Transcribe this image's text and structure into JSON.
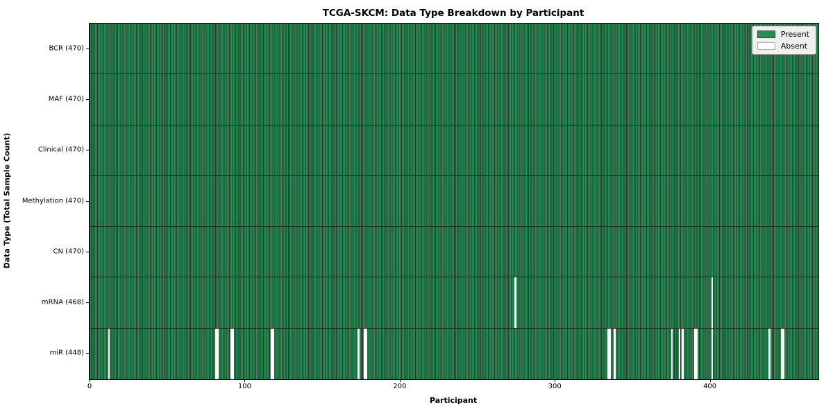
{
  "title": "TCGA-SKCM: Data Type Breakdown by Participant",
  "legend": {
    "present_label": "Present",
    "absent_label": "Absent"
  },
  "colors": {
    "present": "#2e8b57",
    "bar_edge": "#17402a",
    "row_divider": "#1a2e20",
    "absent": "#ffffff"
  },
  "chart_data": {
    "type": "heatmap",
    "title": "TCGA-SKCM: Data Type Breakdown by Participant",
    "xlabel": "Participant",
    "ylabel": "Data Type (Total Sample Count)",
    "xlim": [
      0,
      470
    ],
    "x_ticks": [
      0,
      100,
      200,
      300,
      400
    ],
    "total_participants": 470,
    "legend_entries": [
      "Present",
      "Absent"
    ],
    "legend_position": "upper right",
    "grid": false,
    "rows": [
      {
        "data_type": "BCR",
        "label": "BCR (470)",
        "present_count": 470,
        "absent_participants": []
      },
      {
        "data_type": "MAF",
        "label": "MAF (470)",
        "present_count": 470,
        "absent_participants": []
      },
      {
        "data_type": "Clinical",
        "label": "Clinical (470)",
        "present_count": 470,
        "absent_participants": []
      },
      {
        "data_type": "Methylation",
        "label": "Methylation (470)",
        "present_count": 470,
        "absent_participants": []
      },
      {
        "data_type": "CN",
        "label": "CN (470)",
        "present_count": 470,
        "absent_participants": []
      },
      {
        "data_type": "mRNA",
        "label": "mRNA (468)",
        "present_count": 468,
        "absent_participants": [
          274,
          401
        ]
      },
      {
        "data_type": "miR",
        "label": "miR (448)",
        "present_count": 448,
        "absent_participants": [
          12,
          81,
          82,
          91,
          92,
          117,
          118,
          173,
          177,
          178,
          334,
          335,
          338,
          375,
          380,
          382,
          390,
          391,
          401,
          438,
          446,
          447
        ]
      }
    ]
  }
}
